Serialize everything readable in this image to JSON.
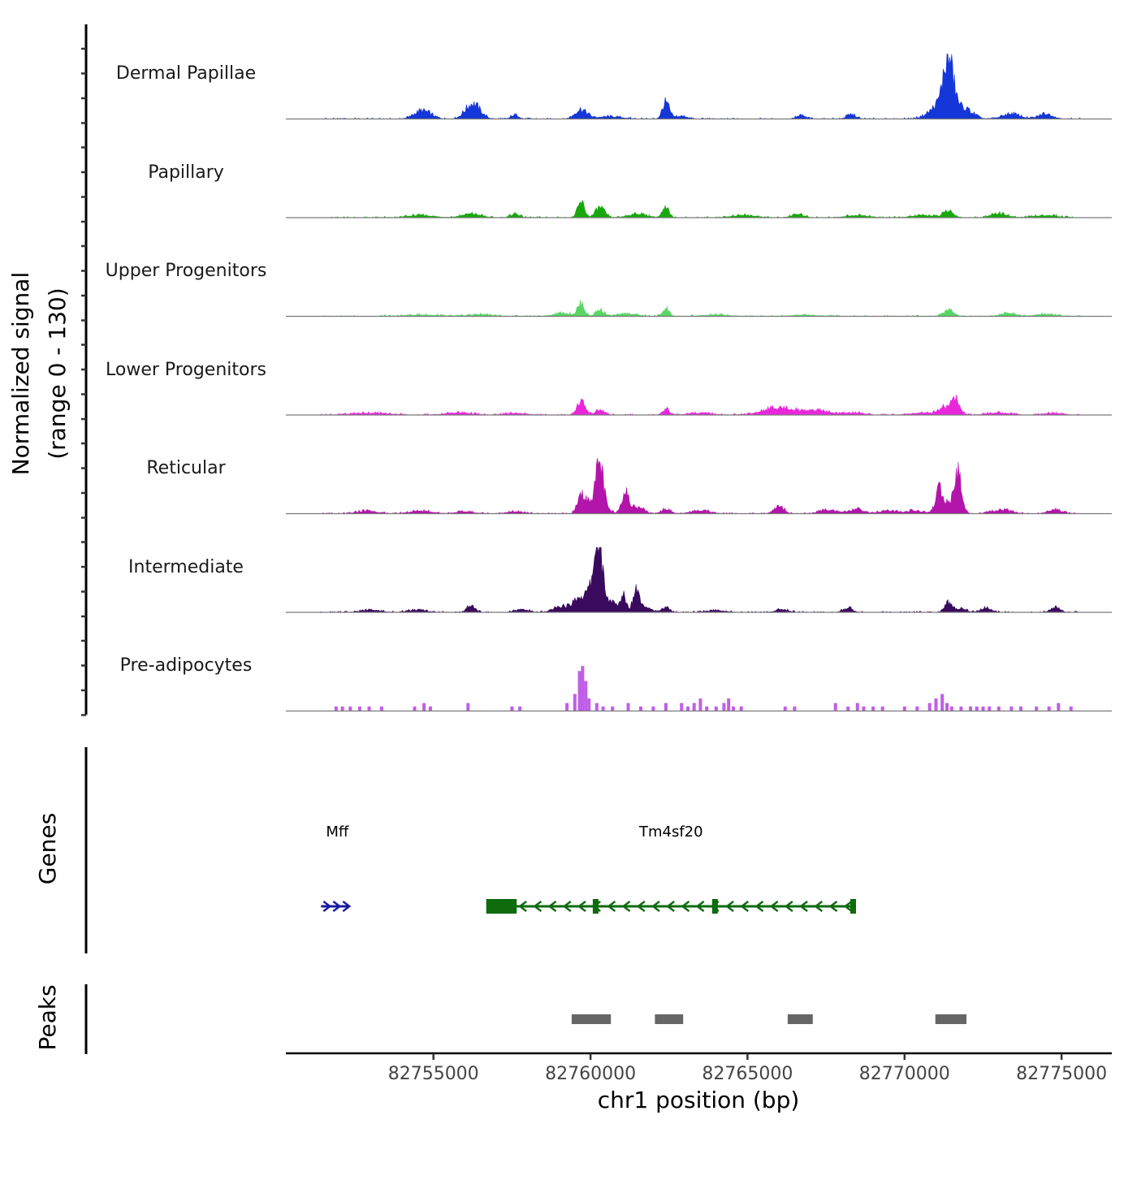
{
  "chart_data": {
    "type": "area",
    "title": "",
    "ylabel": "Normalized signal",
    "ylabel_range": "(range 0 - 130)",
    "xlabel": "chr1 position (bp)",
    "xlim": [
      82750300,
      82776600
    ],
    "signal_ylim": [
      0,
      130
    ],
    "xticks": [
      82755000,
      82760000,
      82765000,
      82770000,
      82775000
    ],
    "xtick_labels": [
      "82755000",
      "82760000",
      "82765000",
      "82770000",
      "82775000"
    ],
    "genes_label": "Genes",
    "peaks_label": "Peaks",
    "colors": {
      "dermal_papillae": "#1537d9",
      "papillary": "#18a80c",
      "upper_progenitors": "#57d664",
      "lower_progenitors": "#ea26dd",
      "reticular": "#b315aa",
      "intermediate": "#3a0a5e",
      "pre_adipocytes": "#c05ee8",
      "gene_mff": "#1a1aa0",
      "gene_tm4sf20": "#0e6b0e",
      "peak": "#666666",
      "baseline": "#7a7a7a"
    },
    "series": [
      {
        "name": "Dermal Papillae",
        "color": "#1537d9",
        "sparse": false,
        "peaks": [
          [
            82754650,
            18,
            260
          ],
          [
            82756250,
            33,
            230
          ],
          [
            82757600,
            9,
            120
          ],
          [
            82759700,
            20,
            190
          ],
          [
            82760600,
            5,
            400
          ],
          [
            82762400,
            35,
            110
          ],
          [
            82762900,
            6,
            200
          ],
          [
            82766700,
            7,
            150
          ],
          [
            82768300,
            9,
            150
          ],
          [
            82771400,
            95,
            150
          ],
          [
            82771300,
            40,
            380
          ],
          [
            82772000,
            13,
            230
          ],
          [
            82773400,
            11,
            280
          ],
          [
            82774500,
            11,
            220
          ]
        ]
      },
      {
        "name": "Papillary",
        "color": "#18a80c",
        "sparse": false,
        "peaks": [
          [
            82754600,
            5,
            400
          ],
          [
            82756200,
            8,
            300
          ],
          [
            82757600,
            9,
            130
          ],
          [
            82759700,
            32,
            110
          ],
          [
            82760300,
            22,
            140
          ],
          [
            82761500,
            8,
            300
          ],
          [
            82762400,
            19,
            110
          ],
          [
            82764900,
            5,
            400
          ],
          [
            82766600,
            7,
            200
          ],
          [
            82768500,
            5,
            350
          ],
          [
            82770600,
            5,
            350
          ],
          [
            82771400,
            14,
            160
          ],
          [
            82773000,
            9,
            250
          ],
          [
            82774500,
            5,
            350
          ]
        ]
      },
      {
        "name": "Upper Progenitors",
        "color": "#57d664",
        "sparse": false,
        "peaks": [
          [
            82754600,
            3,
            500
          ],
          [
            82756500,
            4,
            400
          ],
          [
            82759100,
            7,
            280
          ],
          [
            82759700,
            26,
            110
          ],
          [
            82760300,
            14,
            130
          ],
          [
            82761200,
            5,
            300
          ],
          [
            82762400,
            16,
            110
          ],
          [
            82764000,
            3,
            400
          ],
          [
            82766800,
            3,
            400
          ],
          [
            82771400,
            14,
            160
          ],
          [
            82773300,
            7,
            250
          ],
          [
            82774500,
            4,
            350
          ]
        ]
      },
      {
        "name": "Lower Progenitors",
        "color": "#ea26dd",
        "sparse": false,
        "peaks": [
          [
            82753000,
            4,
            600
          ],
          [
            82755800,
            5,
            400
          ],
          [
            82757600,
            4,
            300
          ],
          [
            82759700,
            30,
            130
          ],
          [
            82760300,
            10,
            150
          ],
          [
            82762400,
            13,
            110
          ],
          [
            82763500,
            4,
            350
          ],
          [
            82766000,
            16,
            500
          ],
          [
            82767200,
            10,
            400
          ],
          [
            82768400,
            5,
            300
          ],
          [
            82770400,
            4,
            300
          ],
          [
            82771600,
            30,
            140
          ],
          [
            82771300,
            16,
            250
          ],
          [
            82773000,
            5,
            350
          ],
          [
            82774700,
            4,
            300
          ]
        ]
      },
      {
        "name": "Reticular",
        "color": "#b315aa",
        "sparse": false,
        "peaks": [
          [
            82752900,
            6,
            300
          ],
          [
            82754600,
            6,
            350
          ],
          [
            82756000,
            4,
            300
          ],
          [
            82757600,
            4,
            300
          ],
          [
            82759700,
            35,
            110
          ],
          [
            82760300,
            78,
            110
          ],
          [
            82760150,
            35,
            260
          ],
          [
            82761100,
            48,
            110
          ],
          [
            82761500,
            16,
            180
          ],
          [
            82762400,
            10,
            150
          ],
          [
            82763500,
            6,
            300
          ],
          [
            82766000,
            16,
            160
          ],
          [
            82767600,
            8,
            300
          ],
          [
            82768500,
            10,
            200
          ],
          [
            82769500,
            6,
            300
          ],
          [
            82770300,
            6,
            250
          ],
          [
            82771100,
            38,
            100
          ],
          [
            82771700,
            78,
            110
          ],
          [
            82771350,
            22,
            280
          ],
          [
            82773100,
            8,
            300
          ],
          [
            82774800,
            9,
            200
          ]
        ]
      },
      {
        "name": "Intermediate",
        "color": "#3a0a5e",
        "sparse": false,
        "peaks": [
          [
            82753000,
            5,
            300
          ],
          [
            82754500,
            5,
            300
          ],
          [
            82756200,
            15,
            130
          ],
          [
            82757800,
            7,
            200
          ],
          [
            82759100,
            13,
            250
          ],
          [
            82759600,
            25,
            160
          ],
          [
            82760000,
            20,
            150
          ],
          [
            82760250,
            128,
            110
          ],
          [
            82760200,
            40,
            300
          ],
          [
            82760700,
            12,
            150
          ],
          [
            82761050,
            36,
            90
          ],
          [
            82761450,
            45,
            100
          ],
          [
            82761700,
            14,
            200
          ],
          [
            82762400,
            12,
            110
          ],
          [
            82764000,
            4,
            300
          ],
          [
            82766100,
            6,
            200
          ],
          [
            82768200,
            9,
            150
          ],
          [
            82771400,
            20,
            120
          ],
          [
            82771800,
            9,
            150
          ],
          [
            82772600,
            9,
            180
          ],
          [
            82774800,
            10,
            150
          ]
        ]
      },
      {
        "name": "Pre-adipocytes",
        "color": "#c05ee8",
        "sparse": true,
        "spikes": [
          [
            82751900,
            9
          ],
          [
            82752100,
            9
          ],
          [
            82752350,
            9
          ],
          [
            82752650,
            9
          ],
          [
            82752950,
            9
          ],
          [
            82753350,
            9
          ],
          [
            82754400,
            9
          ],
          [
            82754700,
            16
          ],
          [
            82754900,
            9
          ],
          [
            82756100,
            16
          ],
          [
            82757500,
            9
          ],
          [
            82757750,
            9
          ],
          [
            82759250,
            16
          ],
          [
            82759500,
            34
          ],
          [
            82759650,
            80
          ],
          [
            82759750,
            90
          ],
          [
            82759850,
            60
          ],
          [
            82759950,
            25
          ],
          [
            82760200,
            16
          ],
          [
            82760400,
            9
          ],
          [
            82760700,
            9
          ],
          [
            82761200,
            16
          ],
          [
            82761600,
            9
          ],
          [
            82762000,
            9
          ],
          [
            82762400,
            16
          ],
          [
            82762900,
            16
          ],
          [
            82763100,
            9
          ],
          [
            82763300,
            16
          ],
          [
            82763500,
            25
          ],
          [
            82763700,
            9
          ],
          [
            82764000,
            9
          ],
          [
            82764250,
            16
          ],
          [
            82764400,
            25
          ],
          [
            82764550,
            9
          ],
          [
            82764800,
            9
          ],
          [
            82766200,
            9
          ],
          [
            82766500,
            9
          ],
          [
            82767800,
            16
          ],
          [
            82768200,
            9
          ],
          [
            82768500,
            16
          ],
          [
            82768700,
            9
          ],
          [
            82769000,
            9
          ],
          [
            82769300,
            9
          ],
          [
            82770000,
            9
          ],
          [
            82770400,
            9
          ],
          [
            82770800,
            16
          ],
          [
            82771000,
            25
          ],
          [
            82771200,
            34
          ],
          [
            82771350,
            16
          ],
          [
            82771500,
            9
          ],
          [
            82771800,
            9
          ],
          [
            82772100,
            9
          ],
          [
            82772300,
            9
          ],
          [
            82772500,
            9
          ],
          [
            82772700,
            9
          ],
          [
            82773000,
            9
          ],
          [
            82773400,
            9
          ],
          [
            82773700,
            9
          ],
          [
            82774200,
            9
          ],
          [
            82774600,
            9
          ],
          [
            82774900,
            16
          ],
          [
            82775300,
            9
          ]
        ]
      }
    ],
    "genes": [
      {
        "name": "Mff",
        "strand": "+",
        "color": "#1a1aa0",
        "start": 82751420,
        "end": 82752320
      },
      {
        "name": "Tm4sf20",
        "strand": "-",
        "color": "#0e6b0e",
        "start": 82757620,
        "end": 82768450,
        "utr_start": 82756680,
        "utr_end": 82757650,
        "exons": [
          82760150,
          82763950,
          82768350
        ]
      }
    ],
    "peaks": [
      {
        "start": 82759400,
        "end": 82760650
      },
      {
        "start": 82762050,
        "end": 82762950
      },
      {
        "start": 82766280,
        "end": 82767080
      },
      {
        "start": 82770980,
        "end": 82771970
      }
    ]
  }
}
